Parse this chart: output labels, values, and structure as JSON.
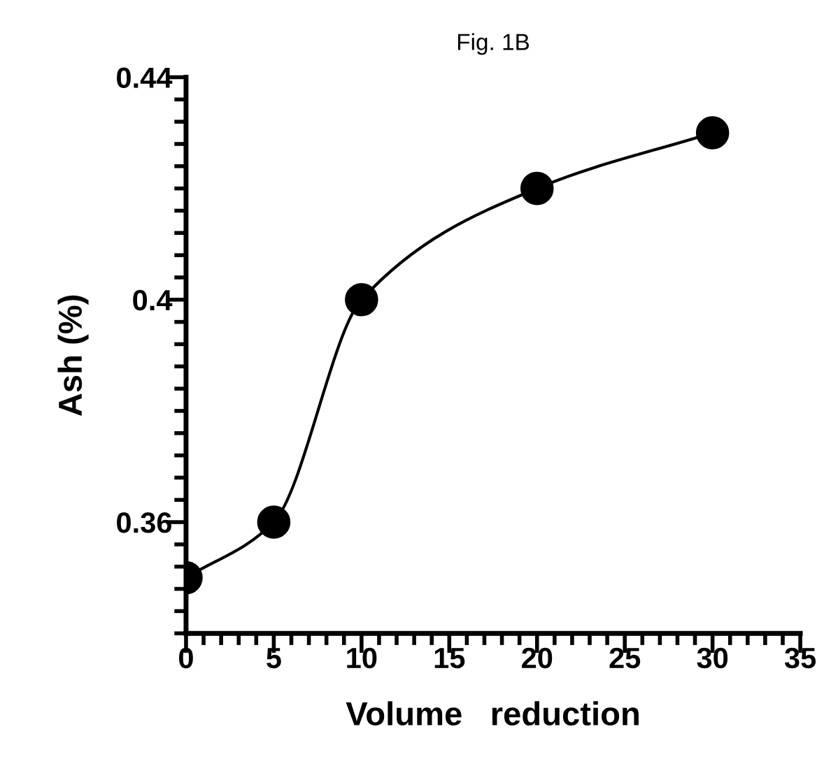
{
  "chart_data": {
    "type": "line",
    "title": "Fig. 1B",
    "xlabel": "Volume   reduction",
    "ylabel": "Ash (%)",
    "x": [
      0,
      5,
      10,
      20,
      30
    ],
    "series": [
      {
        "color": "#000000",
        "values": [
          0.35,
          0.36,
          0.4,
          0.42,
          0.43
        ]
      }
    ],
    "marker": "circle",
    "line_style": "solid",
    "grid": false,
    "xlim": [
      0,
      35
    ],
    "ylim": [
      0.34,
      0.44
    ],
    "xticks": [
      0,
      {
        "value": 1,
        "label": null
      },
      {
        "value": 2,
        "label": null
      },
      {
        "value": 3,
        "label": null
      },
      {
        "value": 4,
        "label": null
      },
      5,
      {
        "value": 6,
        "label": null
      },
      {
        "value": 7,
        "label": null
      },
      {
        "value": 8,
        "label": null
      },
      {
        "value": 9,
        "label": null
      },
      10,
      {
        "value": 11,
        "label": null
      },
      {
        "value": 12,
        "label": null
      },
      {
        "value": 13,
        "label": null
      },
      {
        "value": 14,
        "label": null
      },
      15,
      {
        "value": 16,
        "label": null
      },
      {
        "value": 17,
        "label": null
      },
      {
        "value": 18,
        "label": null
      },
      {
        "value": 19,
        "label": null
      },
      20,
      {
        "value": 21,
        "label": null
      },
      {
        "value": 22,
        "label": null
      },
      {
        "value": 23,
        "label": null
      },
      {
        "value": 24,
        "label": null
      },
      25,
      {
        "value": 26,
        "label": null
      },
      {
        "value": 27,
        "label": null
      },
      {
        "value": 28,
        "label": null
      },
      {
        "value": 29,
        "label": null
      },
      30,
      {
        "value": 31,
        "label": null
      },
      {
        "value": 32,
        "label": null
      },
      {
        "value": 33,
        "label": null
      },
      {
        "value": 34,
        "label": null
      },
      35
    ],
    "yticks": [
      {
        "value": 0.34,
        "label": null
      },
      {
        "value": 0.344,
        "label": null
      },
      {
        "value": 0.348,
        "label": null
      },
      {
        "value": 0.352,
        "label": null
      },
      {
        "value": 0.356,
        "label": null
      },
      0.36,
      {
        "value": 0.364,
        "label": null
      },
      {
        "value": 0.368,
        "label": null
      },
      {
        "value": 0.372,
        "label": null
      },
      {
        "value": 0.376,
        "label": null
      },
      {
        "value": 0.38,
        "label": null
      },
      {
        "value": 0.384,
        "label": null
      },
      {
        "value": 0.388,
        "label": null
      },
      {
        "value": 0.392,
        "label": null
      },
      {
        "value": 0.396,
        "label": null
      },
      0.4,
      {
        "value": 0.404,
        "label": null
      },
      {
        "value": 0.408,
        "label": null
      },
      {
        "value": 0.412,
        "label": null
      },
      {
        "value": 0.416,
        "label": null
      },
      {
        "value": 0.42,
        "label": null
      },
      {
        "value": 0.424,
        "label": null
      },
      {
        "value": 0.428,
        "label": null
      },
      {
        "value": 0.432,
        "label": null
      },
      {
        "value": 0.436,
        "label": null
      },
      0.44
    ]
  }
}
